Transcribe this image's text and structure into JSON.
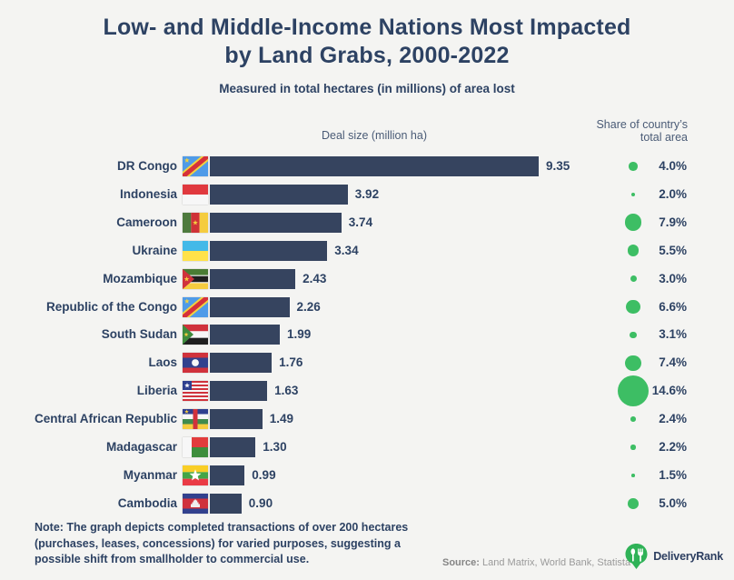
{
  "header": {
    "title_line1": "Low- and Middle-Income Nations Most Impacted",
    "title_line2": "by Land Grabs, 2000-2022",
    "subtitle": "Measured in total hectares (in millions) of area lost"
  },
  "columns": {
    "bar_header": "Deal size (million ha)",
    "share_header": "Share of country’s\ntotal area"
  },
  "chart_data": {
    "type": "bar",
    "orientation": "horizontal",
    "title": "Low- and Middle-Income Nations Most Impacted by Land Grabs, 2000-2022",
    "subtitle": "Measured in total hectares (in millions) of area lost",
    "categories": [
      "DR Congo",
      "Indonesia",
      "Cameroon",
      "Ukraine",
      "Mozambique",
      "Republic of the Congo",
      "South Sudan",
      "Laos",
      "Liberia",
      "Central African Republic",
      "Madagascar",
      "Myanmar",
      "Cambodia"
    ],
    "series": [
      {
        "name": "Deal size (million ha)",
        "unit": "million ha",
        "values": [
          9.35,
          3.92,
          3.74,
          3.34,
          2.43,
          2.26,
          1.99,
          1.76,
          1.63,
          1.49,
          1.3,
          0.99,
          0.9
        ]
      },
      {
        "name": "Share of country’s total area",
        "unit": "%",
        "values": [
          4.0,
          2.0,
          7.9,
          5.5,
          3.0,
          6.6,
          3.1,
          7.4,
          14.6,
          2.4,
          2.2,
          1.5,
          5.0
        ]
      }
    ],
    "xlim": [
      0,
      9.35
    ],
    "grid": false,
    "legend_position": "none",
    "flag_icons": [
      "flag-dr-congo",
      "flag-indonesia",
      "flag-cameroon",
      "flag-ukraine",
      "flag-mozambique",
      "flag-republic-of-the-congo",
      "flag-south-sudan",
      "flag-laos",
      "flag-liberia",
      "flag-central-african-republic",
      "flag-madagascar",
      "flag-myanmar",
      "flag-cambodia"
    ]
  },
  "note": "Note: The graph depicts completed transactions of over 200 hectares\n(purchases, leases, concessions) for varied purposes, suggesting a\npossible shift from smallholder to commercial use.",
  "source": {
    "label": "Source:",
    "text": "Land Matrix, World Bank, Statista"
  },
  "brand": {
    "name": "DeliveryRank"
  },
  "colors": {
    "background": "#f4f4f2",
    "bar": "#36445f",
    "circle": "#3dbe64",
    "text": "#2d4263",
    "logo_green": "#2fb257"
  }
}
